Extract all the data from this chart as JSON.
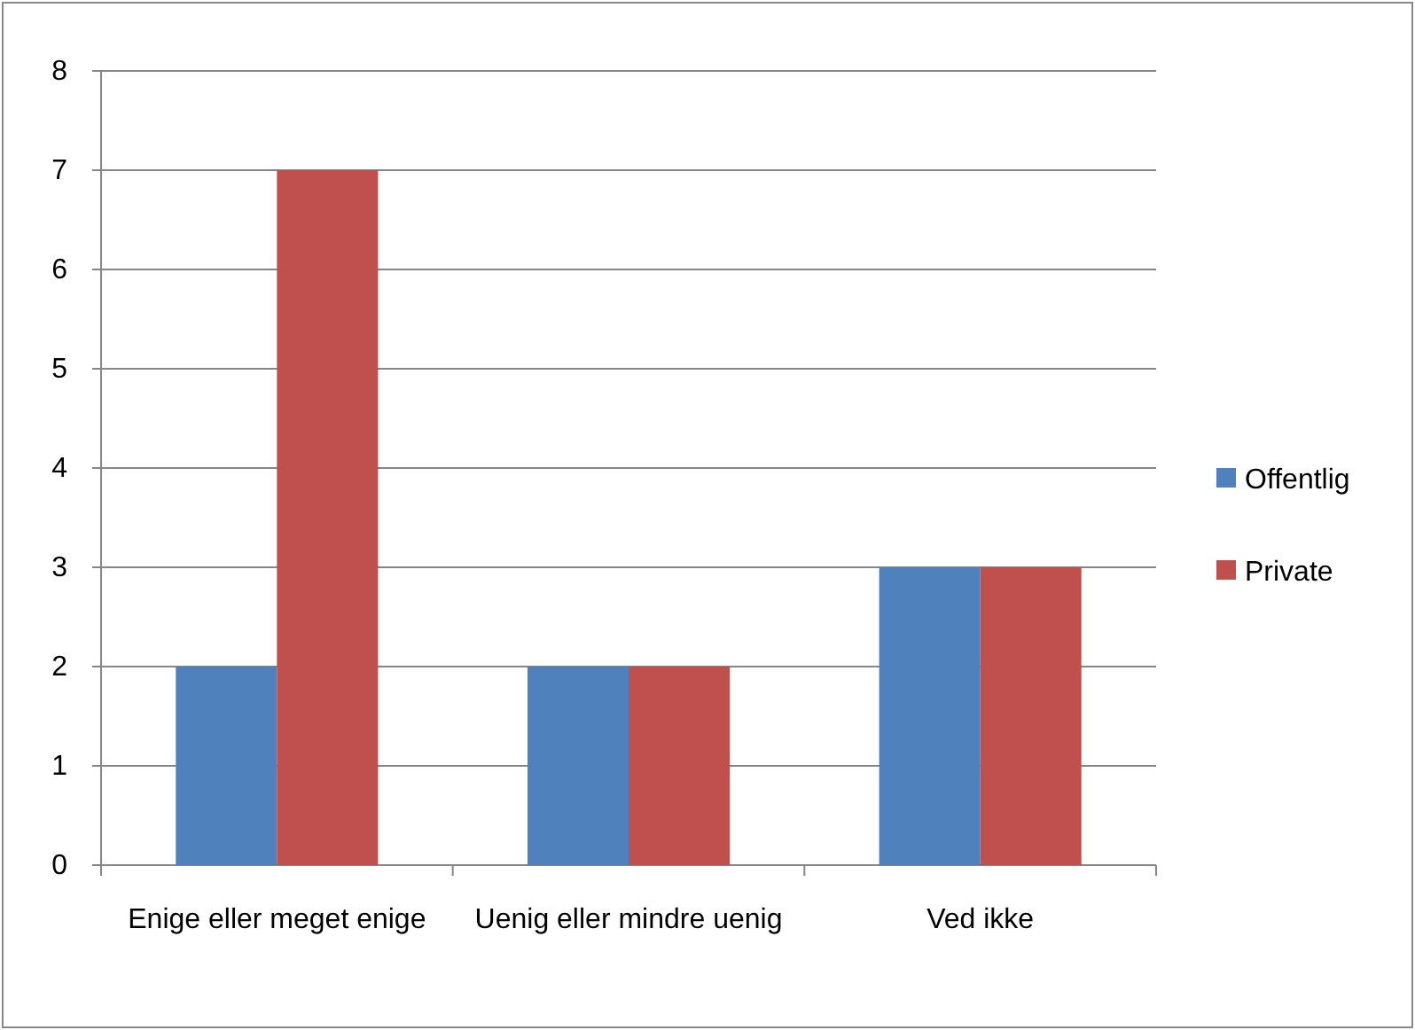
{
  "chart_data": {
    "type": "bar",
    "categories": [
      "Enige eller meget enige",
      "Uenig eller mindre uenig",
      "Ved ikke"
    ],
    "series": [
      {
        "name": "Offentlig",
        "color": "#4f81bd",
        "values": [
          2,
          2,
          3
        ]
      },
      {
        "name": "Private",
        "color": "#c0504d",
        "values": [
          7,
          2,
          3
        ]
      }
    ],
    "ylim": [
      0,
      8
    ],
    "yticks": [
      0,
      1,
      2,
      3,
      4,
      5,
      6,
      7,
      8
    ],
    "grid": "y",
    "legend": "right"
  }
}
